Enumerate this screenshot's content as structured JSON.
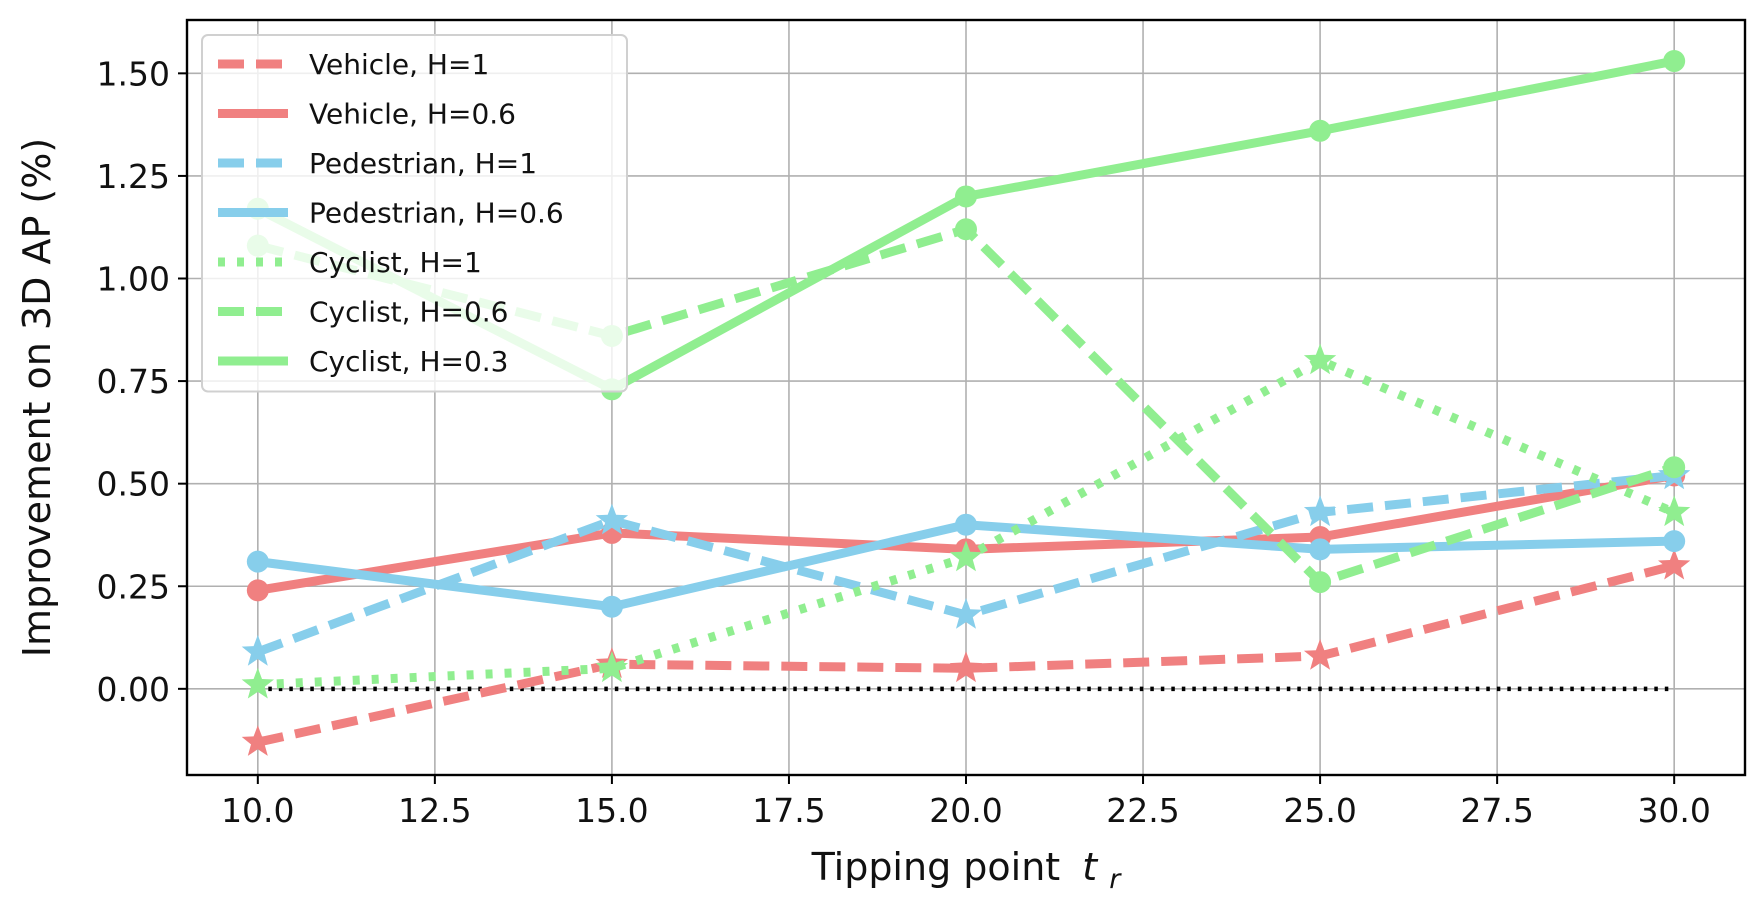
{
  "chart_data": {
    "type": "line",
    "xlabel": "Tipping point",
    "xlabel_symbol": "t",
    "xlabel_subscript": "r",
    "ylabel": "Improvement on 3D AP (%)",
    "xlim": [
      9.0,
      31.0
    ],
    "ylim": [
      -0.21,
      1.63
    ],
    "xticks": [
      "10.0",
      "12.5",
      "15.0",
      "17.5",
      "20.0",
      "22.5",
      "25.0",
      "27.5",
      "30.0"
    ],
    "yticks": [
      "0.00",
      "0.25",
      "0.50",
      "0.75",
      "1.00",
      "1.25",
      "1.50"
    ],
    "grid": true,
    "legend_position": "top-left",
    "x": [
      10,
      15,
      20,
      25,
      30
    ],
    "baseline": 0,
    "series": [
      {
        "name": "Vehicle, H=1",
        "color": "#f08080",
        "dash": "dashed",
        "marker": "star",
        "values": [
          -0.13,
          0.06,
          0.05,
          0.08,
          0.3
        ]
      },
      {
        "name": "Vehicle, H=0.6",
        "color": "#f08080",
        "dash": "solid",
        "marker": "circle",
        "values": [
          0.24,
          0.38,
          0.34,
          0.37,
          0.52
        ]
      },
      {
        "name": "Pedestrian, H=1",
        "color": "#87ceeb",
        "dash": "dashed",
        "marker": "star",
        "values": [
          0.09,
          0.41,
          0.18,
          0.43,
          0.52
        ]
      },
      {
        "name": "Pedestrian, H=0.6",
        "color": "#87ceeb",
        "dash": "solid",
        "marker": "circle",
        "values": [
          0.31,
          0.2,
          0.4,
          0.34,
          0.36
        ]
      },
      {
        "name": "Cyclist, H=1",
        "color": "#90ee90",
        "dash": "dotted",
        "marker": "star",
        "values": [
          0.01,
          0.05,
          0.32,
          0.8,
          0.43
        ]
      },
      {
        "name": "Cyclist, H=0.6",
        "color": "#90ee90",
        "dash": "dashed",
        "marker": "circle",
        "values": [
          1.08,
          0.86,
          1.12,
          0.26,
          0.54
        ]
      },
      {
        "name": "Cyclist, H=0.3",
        "color": "#90ee90",
        "dash": "solid",
        "marker": "circle",
        "values": [
          1.17,
          0.73,
          1.2,
          1.36,
          1.53
        ]
      }
    ]
  }
}
